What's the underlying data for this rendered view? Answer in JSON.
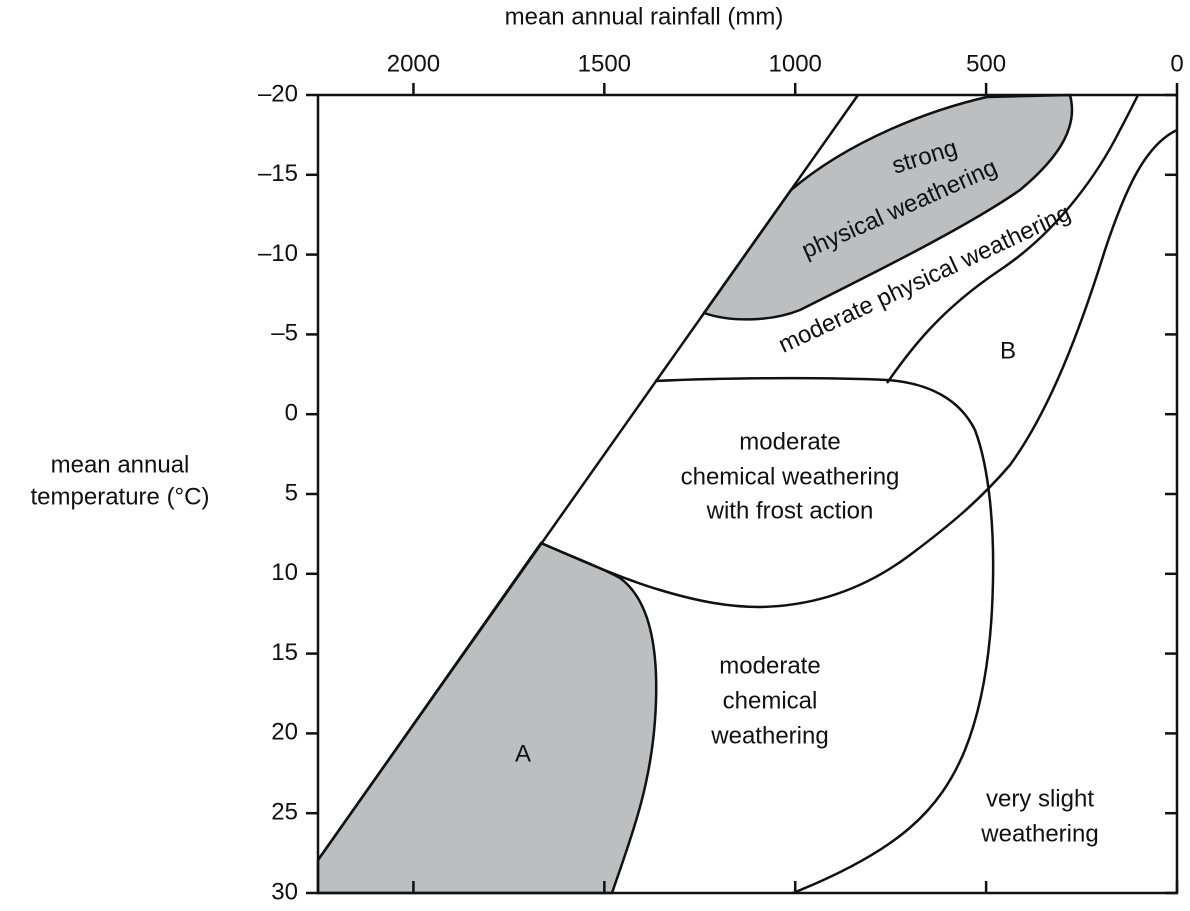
{
  "x_axis": {
    "label": "mean annual rainfall (mm)",
    "lim": [
      2250,
      0
    ],
    "ticks": [
      2000,
      1500,
      1000,
      500,
      0
    ]
  },
  "y_axis": {
    "label": [
      "mean annual",
      "temperature (°C)"
    ],
    "lim": [
      -20,
      30
    ],
    "ticks": [
      {
        "value": -20,
        "label": "–20"
      },
      {
        "value": -15,
        "label": "–15"
      },
      {
        "value": -10,
        "label": "–10"
      },
      {
        "value": -5,
        "label": "–5"
      },
      0,
      5,
      10,
      15,
      20,
      25,
      30
    ]
  },
  "regions": {
    "strong_physical": [
      "strong",
      "physical weathering"
    ],
    "moderate_physical": "moderate physical weathering",
    "b": "B",
    "frost": [
      "moderate",
      "chemical weathering",
      "with frost action"
    ],
    "a": "A",
    "moderate_chemical": [
      "moderate",
      "chemical",
      "weathering"
    ],
    "very_slight": [
      "very slight",
      "weathering"
    ]
  }
}
